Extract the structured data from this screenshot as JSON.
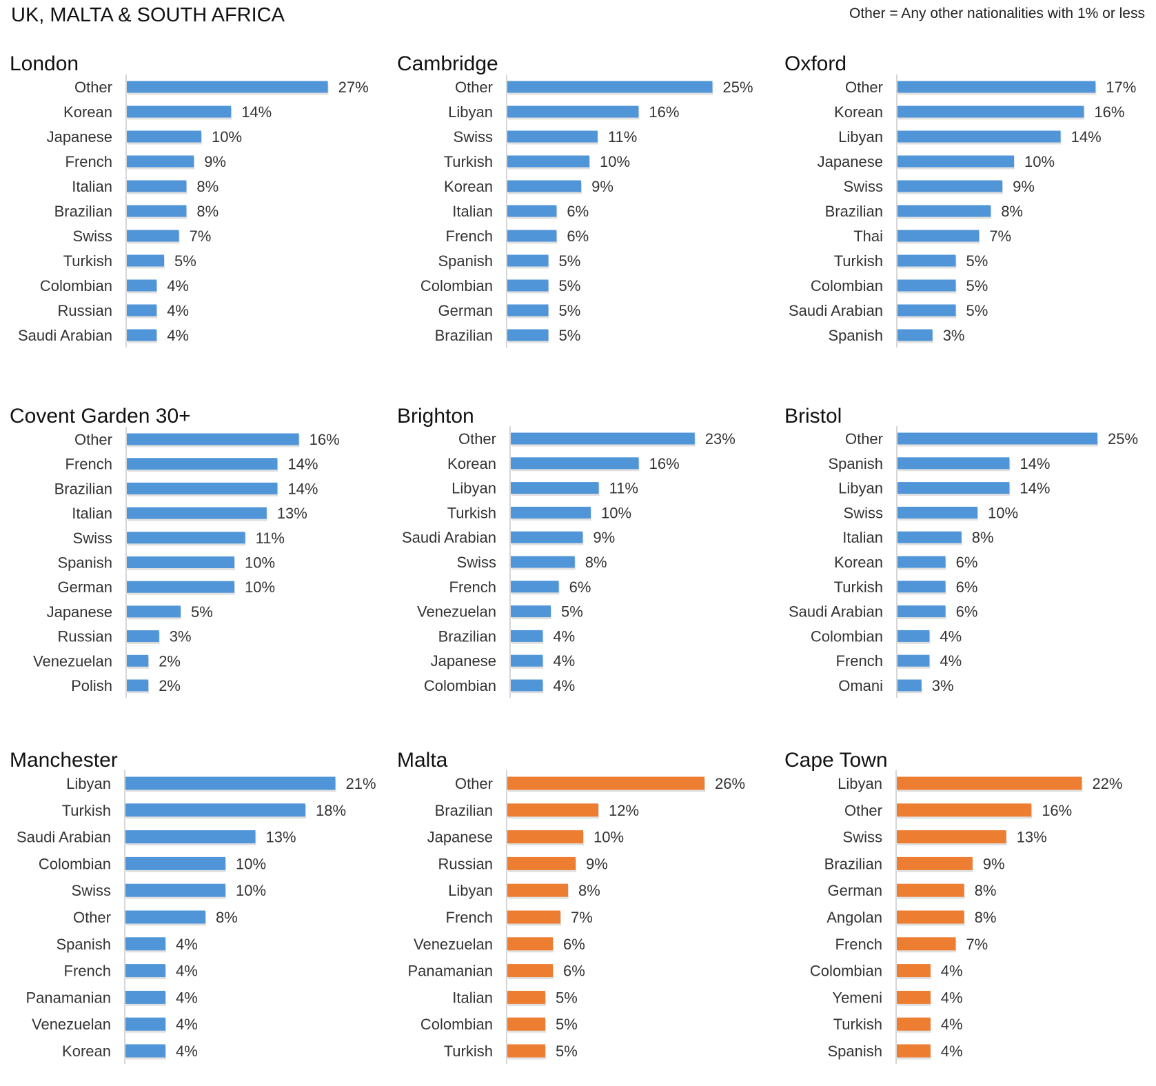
{
  "header": {
    "title": "UK, MALTA & SOUTH AFRICA",
    "note": "Other = Any other nationalities with 1% or less"
  },
  "colors": {
    "uk_bar": "#4f95d8",
    "intl_bar": "#ed7d31",
    "axis": "#d6d6d6"
  },
  "chart_data": [
    {
      "type": "bar",
      "orientation": "horizontal",
      "title": "London",
      "color": "#4f95d8",
      "categories": [
        "Other",
        "Korean",
        "Japanese",
        "French",
        "Italian",
        "Brazilian",
        "Swiss",
        "Turkish",
        "Colombian",
        "Russian",
        "Saudi Arabian"
      ],
      "values": [
        27,
        14,
        10,
        9,
        8,
        8,
        7,
        5,
        4,
        4,
        4
      ],
      "value_labels": [
        "27%",
        "14%",
        "10%",
        "9%",
        "8%",
        "8%",
        "7%",
        "5%",
        "4%",
        "4%",
        "4%"
      ]
    },
    {
      "type": "bar",
      "orientation": "horizontal",
      "title": "Cambridge",
      "color": "#4f95d8",
      "categories": [
        "Other",
        "Libyan",
        "Swiss",
        "Turkish",
        "Korean",
        "Italian",
        "French",
        "Spanish",
        "Colombian",
        "German",
        "Brazilian"
      ],
      "values": [
        25,
        16,
        11,
        10,
        9,
        6,
        6,
        5,
        5,
        5,
        5
      ],
      "value_labels": [
        "25%",
        "16%",
        "11%",
        "10%",
        "9%",
        "6%",
        "6%",
        "5%",
        "5%",
        "5%",
        "5%"
      ]
    },
    {
      "type": "bar",
      "orientation": "horizontal",
      "title": "Oxford",
      "color": "#4f95d8",
      "categories": [
        "Other",
        "Korean",
        "Libyan",
        "Japanese",
        "Swiss",
        "Brazilian",
        "Thai",
        "Turkish",
        "Colombian",
        "Saudi Arabian",
        "Spanish"
      ],
      "values": [
        17,
        16,
        14,
        10,
        9,
        8,
        7,
        5,
        5,
        5,
        3
      ],
      "value_labels": [
        "17%",
        "16%",
        "14%",
        "10%",
        "9%",
        "8%",
        "7%",
        "5%",
        "5%",
        "5%",
        "3%"
      ]
    },
    {
      "type": "bar",
      "orientation": "horizontal",
      "title": "Covent Garden 30+",
      "color": "#4f95d8",
      "categories": [
        "Other",
        "French",
        "Brazilian",
        "Italian",
        "Swiss",
        "Spanish",
        "German",
        "Japanese",
        "Russian",
        "Venezuelan",
        "Polish"
      ],
      "values": [
        16,
        14,
        14,
        13,
        11,
        10,
        10,
        5,
        3,
        2,
        2
      ],
      "value_labels": [
        "16%",
        "14%",
        "14%",
        "13%",
        "11%",
        "10%",
        "10%",
        "5%",
        "3%",
        "2%",
        "2%"
      ]
    },
    {
      "type": "bar",
      "orientation": "horizontal",
      "title": "Brighton",
      "color": "#4f95d8",
      "categories": [
        "Other",
        "Korean",
        "Libyan",
        "Turkish",
        "Saudi Arabian",
        "Swiss",
        "French",
        "Venezuelan",
        "Brazilian",
        "Japanese",
        "Colombian"
      ],
      "values": [
        23,
        16,
        11,
        10,
        9,
        8,
        6,
        5,
        4,
        4,
        4
      ],
      "value_labels": [
        "23%",
        "16%",
        "11%",
        "10%",
        "9%",
        "8%",
        "6%",
        "5%",
        "4%",
        "4%",
        "4%"
      ]
    },
    {
      "type": "bar",
      "orientation": "horizontal",
      "title": "Bristol",
      "color": "#4f95d8",
      "categories": [
        "Other",
        "Spanish",
        "Libyan",
        "Swiss",
        "Italian",
        "Korean",
        "Turkish",
        "Saudi Arabian",
        "Colombian",
        "French",
        "Omani"
      ],
      "values": [
        25,
        14,
        14,
        10,
        8,
        6,
        6,
        6,
        4,
        4,
        3
      ],
      "value_labels": [
        "25%",
        "14%",
        "14%",
        "10%",
        "8%",
        "6%",
        "6%",
        "6%",
        "4%",
        "4%",
        "3%"
      ]
    },
    {
      "type": "bar",
      "orientation": "horizontal",
      "title": "Manchester",
      "color": "#4f95d8",
      "categories": [
        "Libyan",
        "Turkish",
        "Saudi Arabian",
        "Colombian",
        "Swiss",
        "Other",
        "Spanish",
        "French",
        "Panamanian",
        "Venezuelan",
        "Korean"
      ],
      "values": [
        21,
        18,
        13,
        10,
        10,
        8,
        4,
        4,
        4,
        4,
        4
      ],
      "value_labels": [
        "21%",
        "18%",
        "13%",
        "10%",
        "10%",
        "8%",
        "4%",
        "4%",
        "4%",
        "4%",
        "4%"
      ]
    },
    {
      "type": "bar",
      "orientation": "horizontal",
      "title": "Malta",
      "color": "#ed7d31",
      "categories": [
        "Other",
        "Brazilian",
        "Japanese",
        "Russian",
        "Libyan",
        "French",
        "Venezuelan",
        "Panamanian",
        "Italian",
        "Colombian",
        "Turkish"
      ],
      "values": [
        26,
        12,
        10,
        9,
        8,
        7,
        6,
        6,
        5,
        5,
        5
      ],
      "value_labels": [
        "26%",
        "12%",
        "10%",
        "9%",
        "8%",
        "7%",
        "6%",
        "6%",
        "5%",
        "5%",
        "5%"
      ]
    },
    {
      "type": "bar",
      "orientation": "horizontal",
      "title": "Cape Town",
      "color": "#ed7d31",
      "categories": [
        "Libyan",
        "Other",
        "Swiss",
        "Brazilian",
        "German",
        "Angolan",
        "French",
        "Colombian",
        "Yemeni",
        "Turkish",
        "Spanish"
      ],
      "values": [
        22,
        16,
        13,
        9,
        8,
        8,
        7,
        4,
        4,
        4,
        4
      ],
      "value_labels": [
        "22%",
        "16%",
        "13%",
        "9%",
        "8%",
        "8%",
        "7%",
        "4%",
        "4%",
        "4%",
        "4%"
      ]
    }
  ]
}
